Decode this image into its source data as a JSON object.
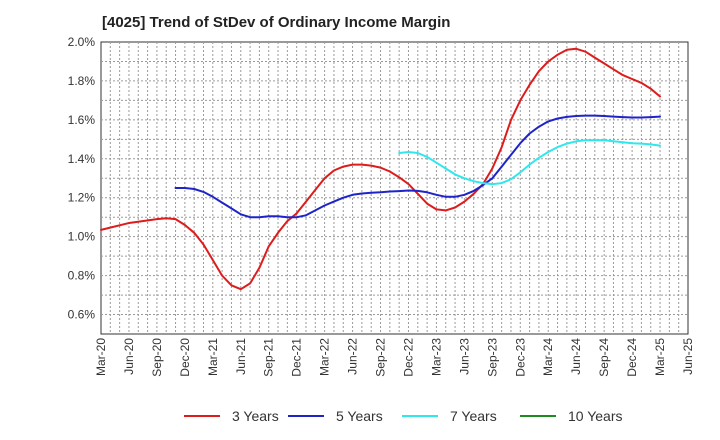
{
  "chart_data": {
    "type": "line",
    "title": "[4025]  Trend of StDev of Ordinary Income Margin",
    "xlabel": "",
    "ylabel": "",
    "ylim": [
      0.5,
      2.0
    ],
    "yticks": [
      "0.6%",
      "0.8%",
      "1.0%",
      "1.2%",
      "1.4%",
      "1.6%",
      "1.8%",
      "2.0%"
    ],
    "x_ticks": [
      "Mar-20",
      "Jun-20",
      "Sep-20",
      "Dec-20",
      "Mar-21",
      "Jun-21",
      "Sep-21",
      "Dec-21",
      "Mar-22",
      "Jun-22",
      "Sep-22",
      "Dec-22",
      "Mar-23",
      "Jun-23",
      "Sep-23",
      "Dec-23",
      "Mar-24",
      "Jun-24",
      "Sep-24",
      "Dec-24",
      "Mar-25",
      "Jun-25"
    ],
    "grid": true,
    "legend_position": "bottom",
    "series": [
      {
        "name": "3 Years",
        "color": "#dd1c1c",
        "points": [
          [
            "Mar-20",
            1.035
          ],
          [
            "Jun-20",
            1.07
          ],
          [
            "Sep-20",
            1.09
          ],
          [
            "Oct-20",
            1.095
          ],
          [
            "Nov-20",
            1.09
          ],
          [
            "Dec-20",
            1.06
          ],
          [
            "Jan-21",
            1.02
          ],
          [
            "Feb-21",
            0.96
          ],
          [
            "Mar-21",
            0.88
          ],
          [
            "Apr-21",
            0.8
          ],
          [
            "May-21",
            0.75
          ],
          [
            "Jun-21",
            0.73
          ],
          [
            "Jul-21",
            0.76
          ],
          [
            "Aug-21",
            0.84
          ],
          [
            "Sep-21",
            0.95
          ],
          [
            "Oct-21",
            1.02
          ],
          [
            "Nov-21",
            1.08
          ],
          [
            "Dec-21",
            1.12
          ],
          [
            "Jan-22",
            1.18
          ],
          [
            "Feb-22",
            1.24
          ],
          [
            "Mar-22",
            1.3
          ],
          [
            "Apr-22",
            1.34
          ],
          [
            "May-22",
            1.36
          ],
          [
            "Jun-22",
            1.37
          ],
          [
            "Jul-22",
            1.37
          ],
          [
            "Aug-22",
            1.365
          ],
          [
            "Sep-22",
            1.355
          ],
          [
            "Oct-22",
            1.335
          ],
          [
            "Nov-22",
            1.305
          ],
          [
            "Dec-22",
            1.27
          ],
          [
            "Jan-23",
            1.22
          ],
          [
            "Feb-23",
            1.17
          ],
          [
            "Mar-23",
            1.14
          ],
          [
            "Apr-23",
            1.135
          ],
          [
            "May-23",
            1.15
          ],
          [
            "Jun-23",
            1.18
          ],
          [
            "Jul-23",
            1.22
          ],
          [
            "Aug-23",
            1.27
          ],
          [
            "Sep-23",
            1.35
          ],
          [
            "Oct-23",
            1.46
          ],
          [
            "Nov-23",
            1.6
          ],
          [
            "Dec-23",
            1.7
          ],
          [
            "Jan-24",
            1.78
          ],
          [
            "Feb-24",
            1.85
          ],
          [
            "Mar-24",
            1.9
          ],
          [
            "Apr-24",
            1.935
          ],
          [
            "May-24",
            1.96
          ],
          [
            "Jun-24",
            1.965
          ],
          [
            "Jul-24",
            1.95
          ],
          [
            "Aug-24",
            1.92
          ],
          [
            "Sep-24",
            1.89
          ],
          [
            "Oct-24",
            1.86
          ],
          [
            "Nov-24",
            1.83
          ],
          [
            "Dec-24",
            1.81
          ],
          [
            "Jan-25",
            1.79
          ],
          [
            "Feb-25",
            1.76
          ],
          [
            "Mar-25",
            1.72
          ]
        ]
      },
      {
        "name": "5 Years",
        "color": "#1f24c8",
        "points": [
          [
            "Mar-20",
            null
          ],
          [
            "Nov-20",
            1.25
          ],
          [
            "Dec-20",
            1.25
          ],
          [
            "Jan-21",
            1.245
          ],
          [
            "Feb-21",
            1.23
          ],
          [
            "Mar-21",
            1.205
          ],
          [
            "Apr-21",
            1.175
          ],
          [
            "May-21",
            1.145
          ],
          [
            "Jun-21",
            1.115
          ],
          [
            "Jul-21",
            1.1
          ],
          [
            "Aug-21",
            1.1
          ],
          [
            "Sep-21",
            1.105
          ],
          [
            "Oct-21",
            1.105
          ],
          [
            "Nov-21",
            1.1
          ],
          [
            "Dec-21",
            1.1
          ],
          [
            "Jan-22",
            1.11
          ],
          [
            "Feb-22",
            1.135
          ],
          [
            "Mar-22",
            1.16
          ],
          [
            "Apr-22",
            1.18
          ],
          [
            "May-22",
            1.2
          ],
          [
            "Jun-22",
            1.215
          ],
          [
            "Jul-22",
            1.222
          ],
          [
            "Aug-22",
            1.226
          ],
          [
            "Sep-22",
            1.228
          ],
          [
            "Oct-22",
            1.232
          ],
          [
            "Nov-22",
            1.234
          ],
          [
            "Dec-22",
            1.237
          ],
          [
            "Jan-23",
            1.235
          ],
          [
            "Feb-23",
            1.228
          ],
          [
            "Mar-23",
            1.215
          ],
          [
            "Apr-23",
            1.205
          ],
          [
            "May-23",
            1.205
          ],
          [
            "Jun-23",
            1.215
          ],
          [
            "Jul-23",
            1.235
          ],
          [
            "Aug-23",
            1.265
          ],
          [
            "Sep-23",
            1.3
          ],
          [
            "Oct-23",
            1.36
          ],
          [
            "Nov-23",
            1.42
          ],
          [
            "Dec-23",
            1.48
          ],
          [
            "Jan-24",
            1.53
          ],
          [
            "Feb-24",
            1.565
          ],
          [
            "Mar-24",
            1.592
          ],
          [
            "Apr-24",
            1.607
          ],
          [
            "May-24",
            1.615
          ],
          [
            "Jun-24",
            1.62
          ],
          [
            "Jul-24",
            1.622
          ],
          [
            "Aug-24",
            1.622
          ],
          [
            "Sep-24",
            1.62
          ],
          [
            "Oct-24",
            1.617
          ],
          [
            "Nov-24",
            1.614
          ],
          [
            "Dec-24",
            1.612
          ],
          [
            "Jan-25",
            1.612
          ],
          [
            "Feb-25",
            1.614
          ],
          [
            "Mar-25",
            1.617
          ]
        ]
      },
      {
        "name": "7 Years",
        "color": "#2ee8ee",
        "points": [
          [
            "Nov-22",
            1.43
          ],
          [
            "Dec-22",
            1.435
          ],
          [
            "Jan-23",
            1.43
          ],
          [
            "Feb-23",
            1.41
          ],
          [
            "Mar-23",
            1.38
          ],
          [
            "Apr-23",
            1.35
          ],
          [
            "May-23",
            1.32
          ],
          [
            "Jun-23",
            1.3
          ],
          [
            "Jul-23",
            1.285
          ],
          [
            "Aug-23",
            1.275
          ],
          [
            "Sep-23",
            1.27
          ],
          [
            "Oct-23",
            1.275
          ],
          [
            "Nov-23",
            1.295
          ],
          [
            "Dec-23",
            1.33
          ],
          [
            "Jan-24",
            1.37
          ],
          [
            "Feb-24",
            1.405
          ],
          [
            "Mar-24",
            1.435
          ],
          [
            "Apr-24",
            1.46
          ],
          [
            "May-24",
            1.478
          ],
          [
            "Jun-24",
            1.49
          ],
          [
            "Jul-24",
            1.495
          ],
          [
            "Aug-24",
            1.496
          ],
          [
            "Sep-24",
            1.495
          ],
          [
            "Oct-24",
            1.49
          ],
          [
            "Nov-24",
            1.485
          ],
          [
            "Dec-24",
            1.48
          ],
          [
            "Jan-25",
            1.478
          ],
          [
            "Feb-25",
            1.474
          ],
          [
            "Mar-25",
            1.468
          ]
        ]
      },
      {
        "name": "10 Years",
        "color": "#1f8c1f",
        "points": []
      }
    ]
  }
}
